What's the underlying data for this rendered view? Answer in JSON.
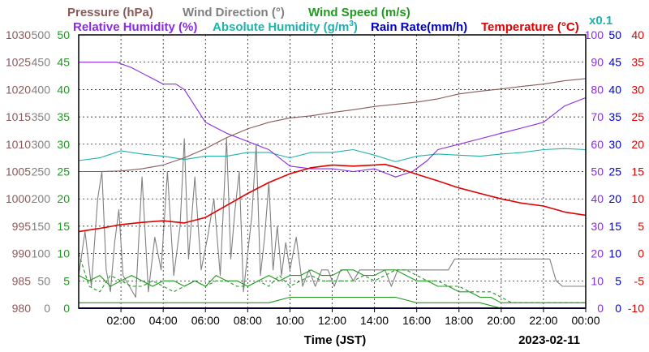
{
  "chart_data": {
    "type": "line",
    "titles": {
      "pressure": "Pressure (hPa)",
      "wind_dir": "Wind Direction (°)",
      "wind_speed": "Wind Speed (m/s)",
      "rh": "Relative Humidity (%)",
      "abs_hum_prefix": "Absolute Humidity (g/m",
      "abs_hum_sup": "3",
      "abs_hum_suffix": ")",
      "rain": "Rain Rate(mm/h)",
      "temperature": "Temperature (°C)",
      "rain_scale_note": "x0.1"
    },
    "xlabel": "Time (JST)",
    "date": "2023-02-11",
    "x_ticks": [
      "02:00",
      "04:00",
      "06:00",
      "08:00",
      "10:00",
      "12:00",
      "14:00",
      "16:00",
      "18:00",
      "20:00",
      "22:00",
      "00:00"
    ],
    "x_range_hours": [
      0,
      24
    ],
    "grid": true,
    "axes": {
      "pressure": {
        "color": "#8b5a5a",
        "range": [
          980,
          1030
        ],
        "ticks": [
          "1030",
          "1025",
          "1020",
          "1015",
          "1010",
          "1005",
          "1000",
          "995",
          "990",
          "985",
          "980"
        ]
      },
      "wind_dir": {
        "color": "#808080",
        "range": [
          0,
          500
        ],
        "ticks": [
          "500",
          "450",
          "400",
          "350",
          "300",
          "250",
          "200",
          "150",
          "100",
          "50",
          "0"
        ]
      },
      "wind_speed": {
        "color": "#1e9a1e",
        "range": [
          0,
          50
        ],
        "ticks": [
          "50",
          "45",
          "40",
          "35",
          "30",
          "25",
          "20",
          "15",
          "10",
          "5",
          "0"
        ]
      },
      "rh": {
        "color": "#8a2be2",
        "range": [
          0,
          100
        ],
        "ticks": [
          "100",
          "90",
          "80",
          "70",
          "60",
          "50",
          "40",
          "30",
          "20",
          "10",
          "0"
        ]
      },
      "rain": {
        "color": "#0000cc",
        "range": [
          0,
          50
        ],
        "ticks": [
          "50",
          "45",
          "40",
          "35",
          "30",
          "25",
          "20",
          "15",
          "10",
          "5",
          "0"
        ]
      },
      "temperature": {
        "color": "#e00000",
        "range": [
          -10,
          40
        ],
        "ticks": [
          "40",
          "35",
          "30",
          "25",
          "20",
          "15",
          "10",
          "5",
          "0",
          "-5",
          "-10"
        ]
      },
      "abs_humidity": {
        "color": "#20b2aa"
      }
    },
    "series": [
      {
        "name": "Pressure (hPa)",
        "axis": "pressure",
        "color": "#8b5a5a",
        "x": [
          0,
          1,
          2,
          3,
          4,
          5,
          6,
          7,
          8,
          9,
          10,
          11,
          12,
          13,
          14,
          15,
          16,
          17,
          18,
          19,
          20,
          21,
          22,
          23,
          24
        ],
        "y": [
          1005.0,
          1005.0,
          1005.1,
          1005.5,
          1006.2,
          1007.5,
          1009.2,
          1011.2,
          1012.8,
          1014.0,
          1014.8,
          1015.2,
          1015.8,
          1016.3,
          1016.9,
          1017.3,
          1017.7,
          1018.3,
          1019.2,
          1019.7,
          1020.1,
          1020.6,
          1021.0,
          1021.6,
          1022.0
        ]
      },
      {
        "name": "Relative Humidity (%)",
        "axis": "rh",
        "color": "#8a2be2",
        "x": [
          0,
          1,
          1.8,
          2.5,
          3,
          3.5,
          4,
          4.6,
          5,
          5.5,
          6,
          7,
          8,
          9,
          10,
          11,
          12,
          13,
          14,
          15,
          15.8,
          16.5,
          17,
          18,
          19,
          20,
          21,
          22,
          23,
          24
        ],
        "y": [
          90,
          90,
          90,
          88,
          86,
          84,
          82,
          82,
          80,
          74,
          68,
          64,
          61,
          58,
          52,
          51,
          51,
          50,
          51,
          48,
          50,
          54,
          58,
          60,
          62,
          64,
          66,
          68,
          74,
          77
        ]
      },
      {
        "name": "Absolute Humidity",
        "axis": "wind_speed",
        "color": "#20b2aa",
        "x": [
          0,
          1,
          2,
          3,
          4,
          5,
          6,
          7,
          8,
          9,
          10,
          11,
          12,
          13,
          14,
          15,
          16,
          17,
          18,
          19,
          20,
          21,
          22,
          23,
          24
        ],
        "y": [
          27.0,
          27.5,
          28.8,
          28.2,
          27.8,
          27.2,
          27.8,
          27.8,
          28.5,
          28.5,
          27.5,
          28.5,
          28.5,
          29.0,
          28.0,
          26.8,
          27.8,
          28.2,
          28.0,
          27.8,
          28.2,
          28.5,
          29.0,
          29.2,
          29.0
        ]
      },
      {
        "name": "Temperature (°C)",
        "axis": "temperature",
        "color": "#e00000",
        "x": [
          0,
          1,
          2,
          3,
          4,
          5,
          6,
          7,
          8,
          9,
          10,
          11,
          12,
          13,
          14,
          14.5,
          15,
          16,
          17,
          18,
          19,
          20,
          21,
          22,
          23,
          24
        ],
        "y": [
          4.0,
          4.6,
          5.3,
          5.7,
          6.0,
          5.6,
          6.6,
          8.8,
          11.0,
          13.0,
          14.6,
          15.7,
          16.2,
          16.0,
          16.2,
          16.3,
          15.8,
          14.5,
          13.3,
          12.0,
          11.0,
          10.0,
          9.2,
          8.7,
          7.6,
          7.0
        ]
      },
      {
        "name": "Rain Rate(mm/h)",
        "axis": "rain",
        "color": "#0000cc",
        "x": [
          0,
          24
        ],
        "y": [
          0,
          0
        ]
      },
      {
        "name": "Wind Direction (°)",
        "axis": "wind_dir",
        "color": "#808080",
        "x": [
          0,
          0.3,
          0.6,
          0.9,
          1.1,
          1.3,
          1.5,
          1.7,
          1.9,
          2.1,
          2.4,
          2.7,
          3.0,
          3.3,
          3.6,
          3.9,
          4.2,
          4.5,
          4.8,
          5.0,
          5.2,
          5.5,
          5.8,
          6.1,
          6.4,
          6.7,
          7.0,
          7.2,
          7.4,
          7.6,
          7.8,
          8.0,
          8.2,
          8.4,
          8.6,
          8.8,
          9.0,
          9.2,
          9.4,
          9.6,
          9.8,
          10.0,
          10.3,
          10.6,
          10.9,
          11.2,
          11.5,
          11.8,
          12.1,
          12.4,
          12.7,
          13.0,
          13.3,
          13.6,
          13.9,
          14.2,
          14.5,
          14.8,
          15.1,
          15.4,
          15.7,
          16.0,
          16.3,
          16.6,
          16.9,
          17.2,
          17.5,
          17.8,
          18.1,
          18.4,
          18.7,
          19.0,
          19.3,
          19.6,
          19.9,
          20.2,
          20.5,
          20.8,
          21.1,
          21.4,
          21.7,
          22.0,
          22.3,
          22.6,
          22.9,
          23.2,
          23.5,
          23.8,
          24
        ],
        "y": [
          60,
          140,
          40,
          200,
          250,
          70,
          30,
          120,
          180,
          60,
          40,
          20,
          240,
          30,
          130,
          70,
          250,
          60,
          150,
          310,
          90,
          240,
          70,
          130,
          200,
          60,
          310,
          90,
          180,
          250,
          30,
          100,
          170,
          300,
          60,
          130,
          230,
          70,
          150,
          60,
          120,
          70,
          130,
          40,
          70,
          40,
          70,
          70,
          40,
          70,
          70,
          50,
          70,
          70,
          70,
          70,
          70,
          40,
          70,
          70,
          70,
          70,
          70,
          70,
          70,
          70,
          70,
          90,
          90,
          90,
          90,
          90,
          90,
          90,
          90,
          90,
          90,
          90,
          90,
          90,
          90,
          90,
          90,
          50,
          40,
          40,
          40,
          40,
          40
        ]
      },
      {
        "name": "Wind Speed (m/s)",
        "axis": "wind_speed",
        "color": "#1e9a1e",
        "x": [
          0,
          0.5,
          1,
          1.5,
          2,
          2.5,
          3,
          3.5,
          4,
          4.5,
          5,
          5.5,
          6,
          6.5,
          7,
          7.5,
          8,
          8.5,
          9,
          9.5,
          10,
          10.5,
          11,
          11.5,
          12,
          12.5,
          13,
          13.5,
          14,
          14.5,
          15,
          15.5,
          16,
          16.5,
          17,
          17.5,
          18,
          18.5,
          19,
          19.5,
          20,
          20.5,
          21,
          21.5,
          22,
          22.5,
          23,
          23.5,
          24
        ],
        "y": [
          6,
          5,
          6,
          4,
          5,
          6,
          5,
          4,
          5,
          5,
          4,
          5,
          4,
          6,
          5,
          5,
          4,
          5,
          6,
          5,
          6,
          6,
          7,
          6,
          6,
          7,
          7,
          6,
          6,
          7,
          7,
          6,
          5,
          5,
          4,
          4,
          3,
          3,
          2,
          2,
          1,
          1,
          1,
          1,
          1,
          1,
          1,
          1,
          1
        ]
      },
      {
        "name": "Wind Speed (gust)",
        "axis": "wind_speed",
        "color": "#1e9a1e",
        "dashed": true,
        "x": [
          0,
          0.5,
          1,
          1.5,
          2,
          2.5,
          3,
          3.5,
          4,
          4.5,
          5,
          5.5,
          6,
          6.5,
          7,
          7.5,
          8,
          8.5,
          9,
          9.5,
          10,
          10.5,
          11,
          11.5,
          12,
          12.5,
          13,
          13.5,
          14,
          14.5,
          15,
          15.5,
          16,
          16.5,
          17,
          17.5,
          18,
          18.5,
          19,
          19.5,
          20,
          20.5,
          21,
          21.5,
          22,
          22.5,
          23,
          23.5,
          24
        ],
        "y": [
          10,
          4,
          3,
          6,
          5,
          4,
          4,
          5,
          4,
          3,
          4,
          5,
          4,
          5,
          5,
          4,
          4,
          5,
          4,
          6,
          4,
          5,
          6,
          5,
          5,
          5,
          5,
          6,
          5,
          6,
          7,
          7,
          6,
          5,
          5,
          4,
          4,
          3,
          3,
          3,
          2,
          1,
          1,
          1,
          1,
          1,
          1,
          1,
          1
        ]
      },
      {
        "name": "Wind Speed (low)",
        "axis": "wind_speed",
        "color": "#1e9a1e",
        "x": [
          0,
          1,
          2,
          3,
          4,
          5,
          6,
          7,
          8,
          9,
          10,
          11,
          12,
          13,
          14,
          15,
          16,
          17,
          18,
          19,
          20,
          21,
          22,
          23,
          24
        ],
        "y": [
          1,
          1,
          1,
          1,
          1,
          1,
          1,
          1,
          1,
          1,
          2,
          2,
          2,
          2,
          2,
          2,
          1,
          1,
          1,
          1,
          0,
          0,
          0,
          0,
          0
        ]
      }
    ]
  }
}
